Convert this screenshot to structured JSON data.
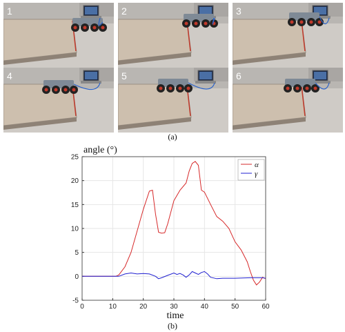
{
  "panel_a": {
    "caption": "(a)",
    "frames": [
      {
        "label": "1",
        "robot_stage": 0
      },
      {
        "label": "2",
        "robot_stage": 1
      },
      {
        "label": "3",
        "robot_stage": 2
      },
      {
        "label": "4",
        "robot_stage": 3
      },
      {
        "label": "5",
        "robot_stage": 4
      },
      {
        "label": "6",
        "robot_stage": 5
      }
    ]
  },
  "panel_b": {
    "caption": "(b)"
  },
  "colors": {
    "alpha": "#d62728",
    "gamma": "#1f1fd0",
    "axis": "#333333",
    "grid": "#e6e6e6"
  },
  "chart_data": {
    "type": "line",
    "ylabel": "angle (°)",
    "xlabel": "time",
    "xlim": [
      0,
      60
    ],
    "ylim": [
      -5,
      25
    ],
    "xticks": [
      0,
      10,
      20,
      30,
      40,
      50,
      60
    ],
    "yticks": [
      -5,
      0,
      5,
      10,
      15,
      20,
      25
    ],
    "legend_position": "top-right",
    "grid": true,
    "series": [
      {
        "name": "α",
        "color_key": "alpha",
        "x": [
          0,
          11,
          12,
          14,
          16,
          18,
          20,
          22,
          23,
          24,
          25,
          26,
          27,
          28,
          30,
          32,
          34,
          35,
          36,
          37,
          38,
          39,
          40,
          42,
          44,
          46,
          48,
          50,
          52,
          54,
          55,
          56,
          57,
          58,
          59,
          60
        ],
        "y": [
          0,
          0,
          0.3,
          2,
          5,
          9.5,
          14,
          17.8,
          18,
          13,
          9.2,
          9,
          9.1,
          11,
          15.8,
          18,
          19.5,
          22,
          23.6,
          24,
          23.2,
          18,
          17.6,
          15,
          12.5,
          11.5,
          10,
          7.2,
          5.5,
          3,
          1,
          -0.8,
          -1.8,
          -1.2,
          -0.2,
          -0.5
        ]
      },
      {
        "name": "γ",
        "color_key": "gamma",
        "x": [
          0,
          10,
          12,
          14,
          16,
          18,
          20,
          22,
          24,
          25,
          26,
          28,
          30,
          31,
          32,
          33,
          34,
          35,
          36,
          37,
          38,
          39,
          40,
          41,
          42,
          44,
          46,
          50,
          55,
          58,
          59,
          60
        ],
        "y": [
          0,
          0,
          0,
          0.5,
          0.7,
          0.5,
          0.6,
          0.5,
          0,
          -0.5,
          -0.3,
          0.2,
          0.7,
          0.4,
          0.6,
          0.3,
          -0.2,
          0.3,
          1,
          0.7,
          0.4,
          0.8,
          1,
          0.5,
          -0.2,
          -0.5,
          -0.4,
          -0.4,
          -0.3,
          -0.3,
          -0.3,
          -0.4
        ]
      }
    ]
  }
}
